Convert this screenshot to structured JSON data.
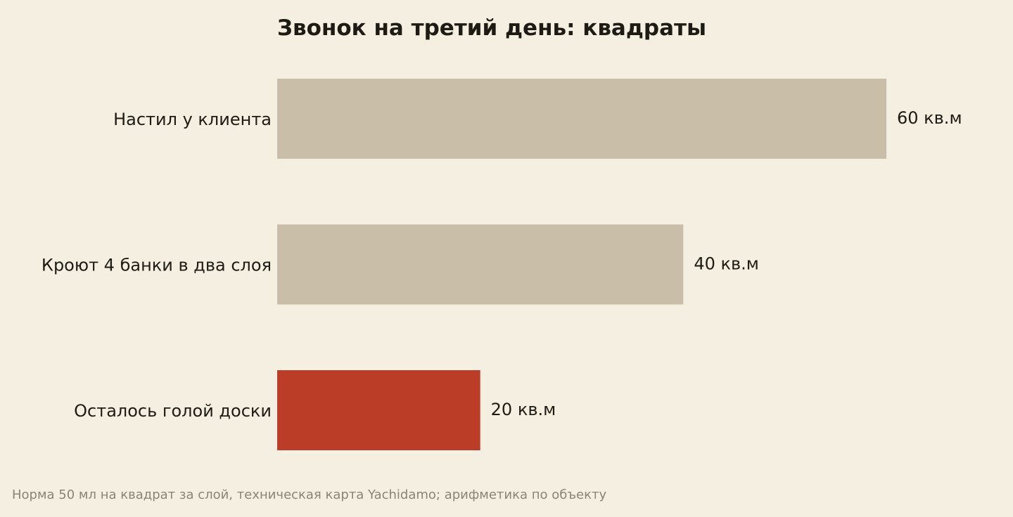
{
  "chart_data": {
    "type": "bar",
    "orientation": "horizontal",
    "title": "Звонок на третий день: квадраты",
    "categories": [
      "Настил у клиента",
      "Кроют 4 банки в два слоя",
      "Осталось голой доски"
    ],
    "values": [
      60,
      40,
      20
    ],
    "value_labels": [
      "60 кв.м",
      "40 кв.м",
      "20 кв.м"
    ],
    "unit": "кв.м",
    "xlim": [
      0,
      60
    ],
    "grid": false,
    "legend": "none",
    "colors": [
      "#c9bfa8",
      "#c9bfa8",
      "#bc3d27"
    ]
  },
  "footnote": "Норма 50 мл на квадрат за слой, техническая карта Yachidamo; арифметика по объекту",
  "colors": {
    "background": "#f5efe2",
    "text": "#1e1b14",
    "muted": "#8a8477"
  }
}
